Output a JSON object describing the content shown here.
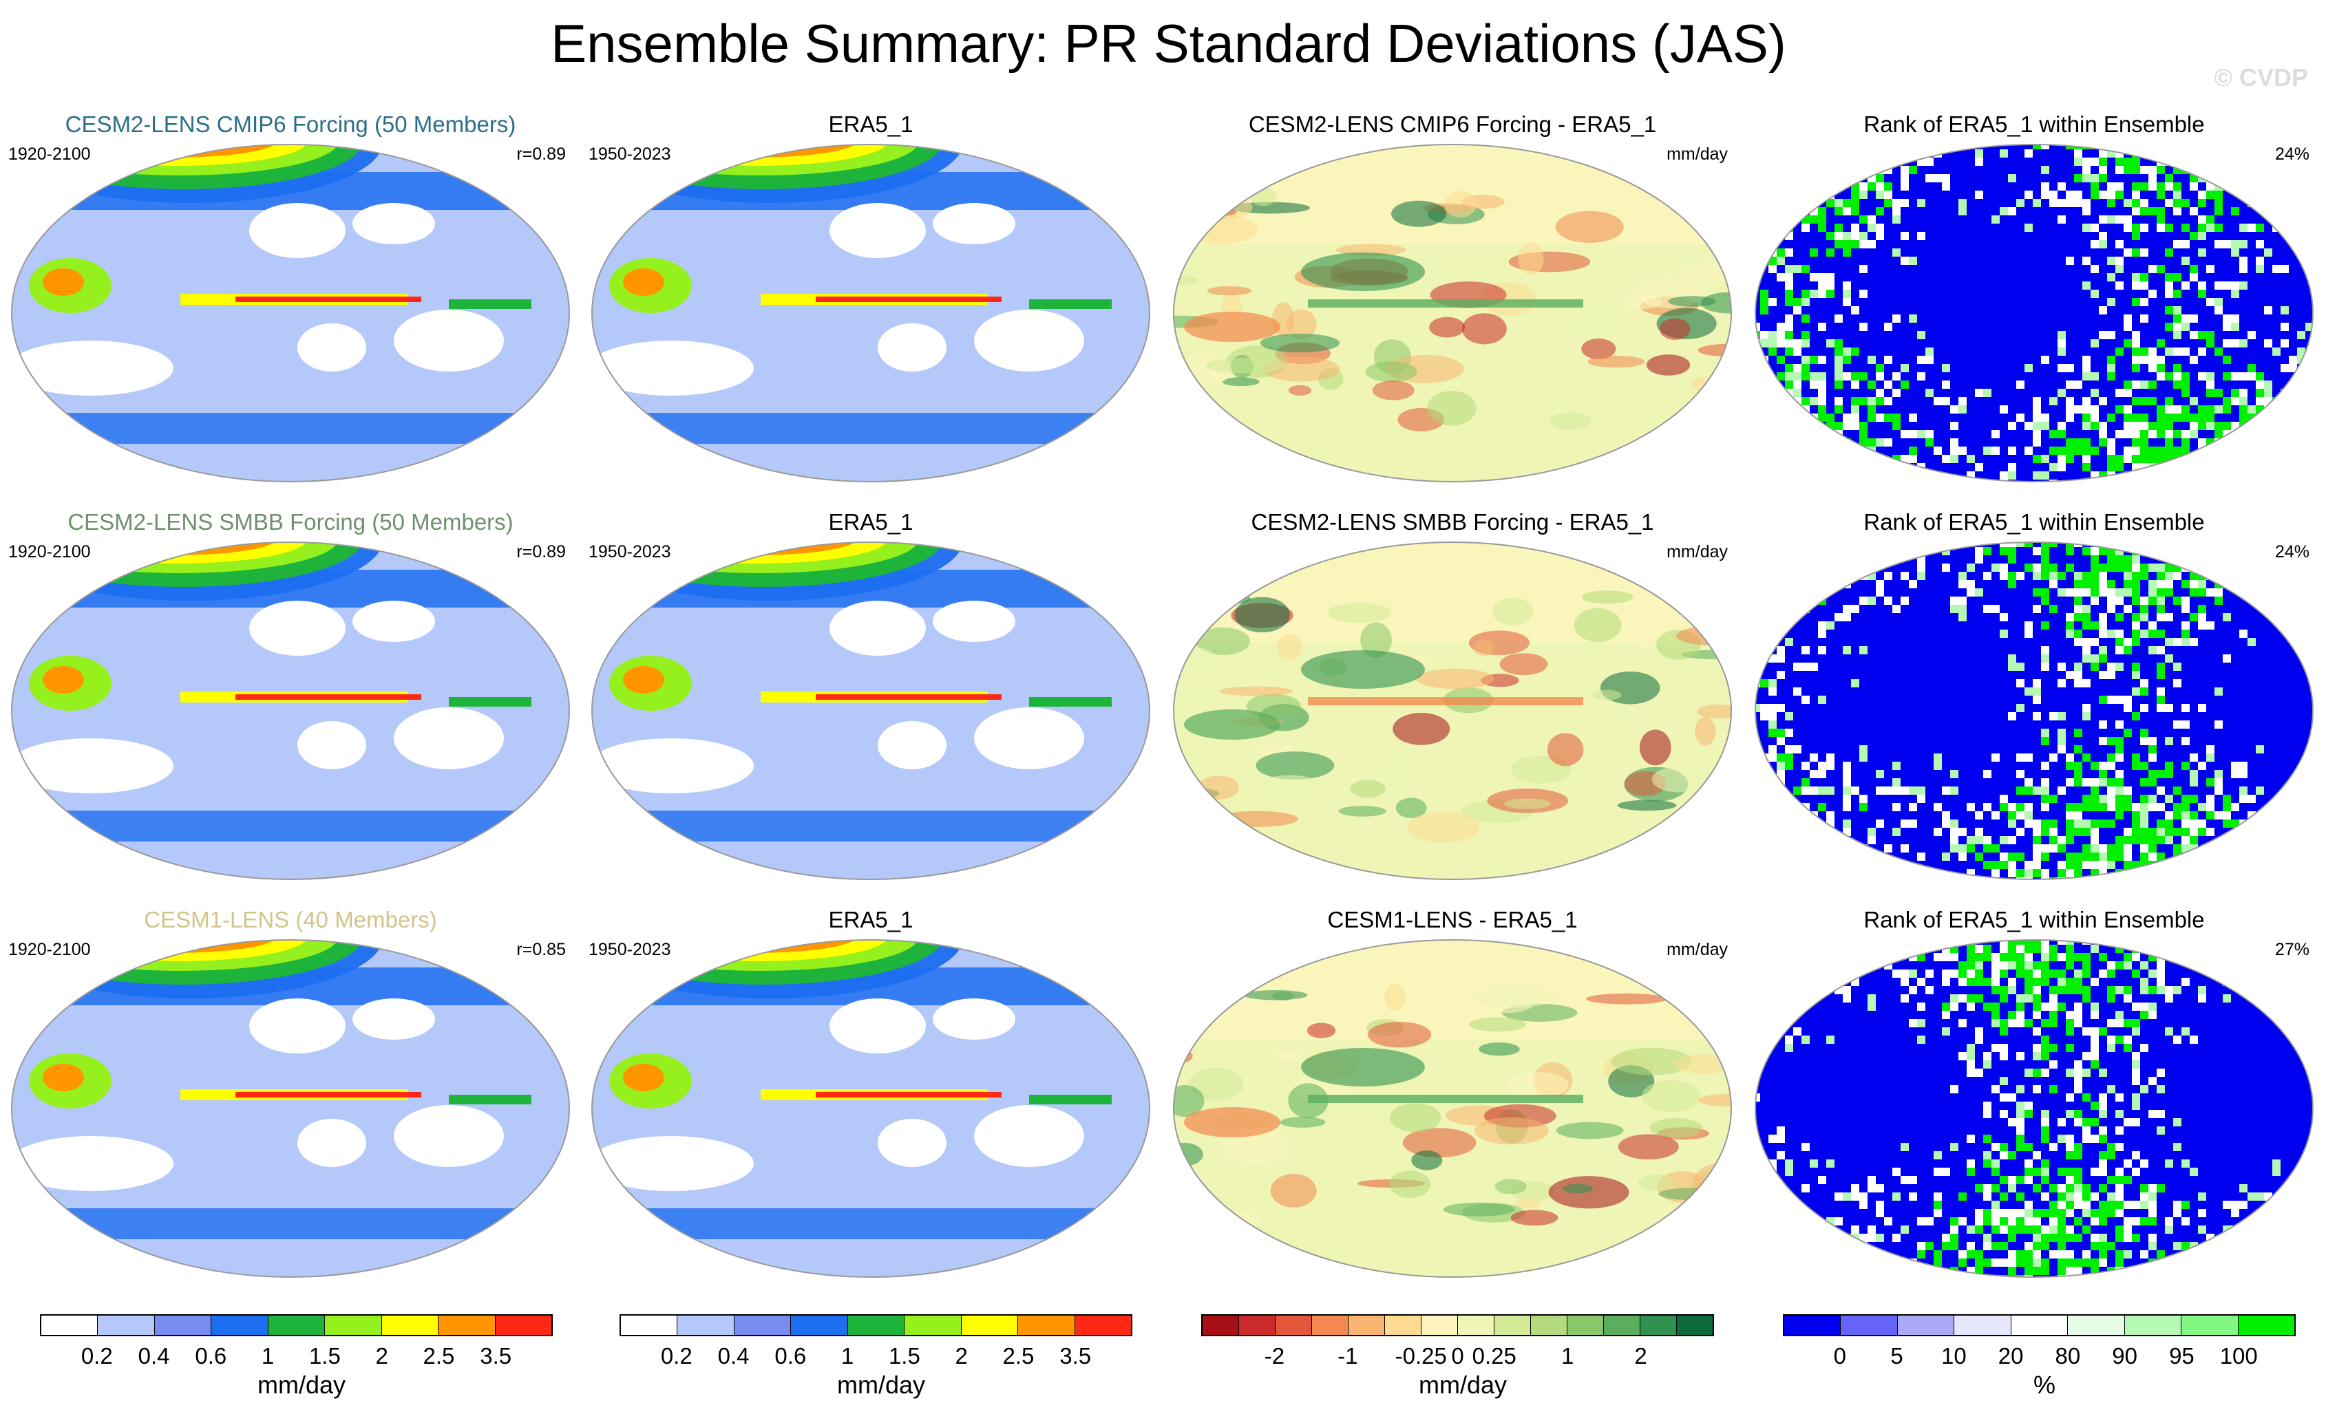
{
  "title": "Ensemble Summary: PR Standard Deviations (JAS)",
  "watermark": "© CVDP",
  "chart_data": [
    {
      "type": "heatmap",
      "row": 1,
      "panels": [
        {
          "title": "CESM2-LENS CMIP6 Forcing (50 Members)",
          "title_color": "#2a6f8a",
          "years": "1920-2100",
          "stat": "r=0.89",
          "kind": "std"
        },
        {
          "title": "ERA5_1",
          "title_color": "#000000",
          "years": "1950-2023",
          "stat": "",
          "kind": "std"
        },
        {
          "title": "CESM2-LENS CMIP6 Forcing - ERA5_1",
          "title_color": "#000000",
          "years": "",
          "stat": "mm/day",
          "kind": "diff"
        },
        {
          "title": "Rank of ERA5_1 within Ensemble",
          "title_color": "#000000",
          "years": "",
          "stat": "24%",
          "kind": "rank"
        }
      ]
    },
    {
      "type": "heatmap",
      "row": 2,
      "panels": [
        {
          "title": "CESM2-LENS SMBB Forcing (50 Members)",
          "title_color": "#6f8f6f",
          "years": "1920-2100",
          "stat": "r=0.89",
          "kind": "std"
        },
        {
          "title": "ERA5_1",
          "title_color": "#000000",
          "years": "1950-2023",
          "stat": "",
          "kind": "std"
        },
        {
          "title": "CESM2-LENS SMBB Forcing - ERA5_1",
          "title_color": "#000000",
          "years": "",
          "stat": "mm/day",
          "kind": "diff"
        },
        {
          "title": "Rank of ERA5_1 within Ensemble",
          "title_color": "#000000",
          "years": "",
          "stat": "24%",
          "kind": "rank"
        }
      ]
    },
    {
      "type": "heatmap",
      "row": 3,
      "panels": [
        {
          "title": "CESM1-LENS (40 Members)",
          "title_color": "#d2c48a",
          "years": "1920-2100",
          "stat": "r=0.85",
          "kind": "std"
        },
        {
          "title": "ERA5_1",
          "title_color": "#000000",
          "years": "1950-2023",
          "stat": "",
          "kind": "std"
        },
        {
          "title": "CESM1-LENS - ERA5_1",
          "title_color": "#000000",
          "years": "",
          "stat": "mm/day",
          "kind": "diff"
        },
        {
          "title": "Rank of ERA5_1 within Ensemble",
          "title_color": "#000000",
          "years": "",
          "stat": "27%",
          "kind": "rank"
        }
      ]
    }
  ],
  "colorbars": [
    {
      "name": "std-colorbar-1",
      "colors": [
        "#ffffff",
        "#b4c8fa",
        "#788cf0",
        "#1e6ef0",
        "#1eb43c",
        "#96f01e",
        "#ffff00",
        "#ff9600",
        "#ff2814"
      ],
      "ticks": [
        "0.2",
        "0.4",
        "0.6",
        "1",
        "1.5",
        "2",
        "2.5",
        "3.5"
      ],
      "units": "mm/day"
    },
    {
      "name": "std-colorbar-2",
      "colors": [
        "#ffffff",
        "#b4c8fa",
        "#788cf0",
        "#1e6ef0",
        "#1eb43c",
        "#96f01e",
        "#ffff00",
        "#ff9600",
        "#ff2814"
      ],
      "ticks": [
        "0.2",
        "0.4",
        "0.6",
        "1",
        "1.5",
        "2",
        "2.5",
        "3.5"
      ],
      "units": "mm/day"
    },
    {
      "name": "diff-colorbar",
      "colors": [
        "#a50f15",
        "#cb2a2a",
        "#e3573a",
        "#f3894f",
        "#f9b56f",
        "#fddc92",
        "#fdf5bd",
        "#eef5b5",
        "#d4ea97",
        "#b3da7c",
        "#8ac66a",
        "#5aae5e",
        "#2f9250",
        "#0b6b3a"
      ],
      "ticks": [
        "-2",
        "-1",
        "-0.25",
        "0",
        "0.25",
        "1",
        "2"
      ],
      "units": "mm/day"
    },
    {
      "name": "rank-colorbar",
      "colors": [
        "#0000f0",
        "#6464f8",
        "#aaaaf8",
        "#e6e6fc",
        "#ffffff",
        "#e6fce6",
        "#b4f8b4",
        "#82f882",
        "#00f000"
      ],
      "ticks": [
        "0",
        "5",
        "10",
        "20",
        "80",
        "90",
        "95",
        "100"
      ],
      "units": "%"
    }
  ]
}
